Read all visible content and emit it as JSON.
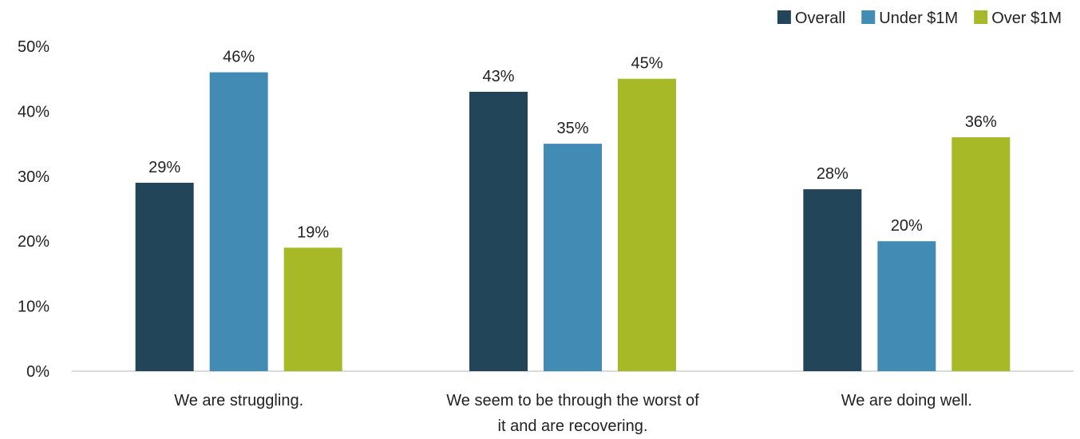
{
  "chart_data": {
    "type": "bar",
    "categories": [
      [
        "We are struggling."
      ],
      [
        "We seem to be through the worst of",
        "it and are recovering."
      ],
      [
        "We are doing well."
      ]
    ],
    "series": [
      {
        "name": "Overall",
        "color": "#22455a",
        "values": [
          29,
          43,
          28
        ],
        "labels": [
          "29%",
          "43%",
          "28%"
        ]
      },
      {
        "name": "Under $1M",
        "color": "#428bb5",
        "values": [
          46,
          35,
          20
        ],
        "labels": [
          "46%",
          "35%",
          "20%"
        ]
      },
      {
        "name": "Over $1M",
        "color": "#a7b927",
        "values": [
          19,
          45,
          36
        ],
        "labels": [
          "19%",
          "45%",
          "36%"
        ]
      }
    ],
    "ylim": [
      0,
      50
    ],
    "yticks": [
      "0%",
      "10%",
      "20%",
      "30%",
      "40%",
      "50%"
    ],
    "grid": false,
    "legend": "top-right"
  }
}
